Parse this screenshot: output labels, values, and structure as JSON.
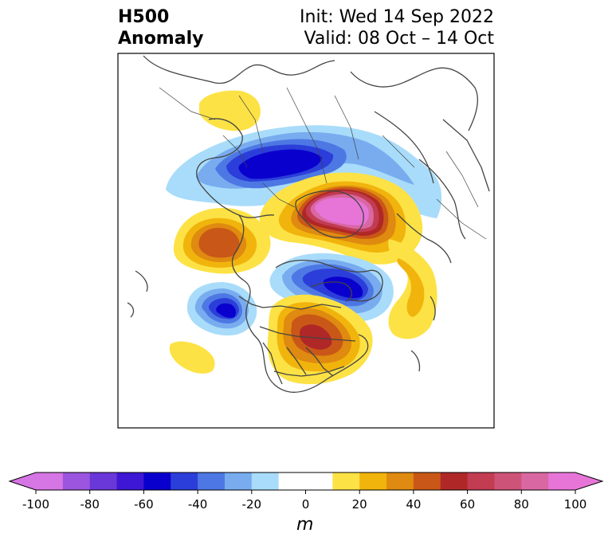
{
  "title_left_line1": "H500",
  "title_left_line2": "Anomaly",
  "title_right_line1": "Init: Wed 14 Sep 2022",
  "title_right_line2": "Valid: 08 Oct – 14 Oct",
  "colorbar": {
    "unit": "m",
    "tick_labels": [
      "-100",
      "-80",
      "-60",
      "-40",
      "-20",
      "0",
      "20",
      "40",
      "60",
      "80",
      "100"
    ],
    "range": [
      -100,
      100
    ],
    "step": 10,
    "colors": [
      "#d675e4",
      "#9b55df",
      "#6a37d9",
      "#3d17d4",
      "#0a00cd",
      "#2b3ed9",
      "#4d78e4",
      "#78acef",
      "#a8dcfa",
      "#ffffff",
      "#ffffff",
      "#fde245",
      "#f1b40c",
      "#df8a10",
      "#c95717",
      "#b02727",
      "#c23c52",
      "#ce5378",
      "#d967a2",
      "#e775d8"
    ],
    "extend": "both"
  },
  "map": {
    "projection": "polar-stereographic",
    "region": "North America / Arctic",
    "fill": "filled contours",
    "anomaly_centers": [
      {
        "label": "positive",
        "region": "Arctic / Greenland",
        "value_m": 100
      },
      {
        "label": "positive",
        "region": "Great Lakes",
        "value_m": 65
      },
      {
        "label": "positive",
        "region": "Siberia / Far East",
        "value_m": 55
      },
      {
        "label": "positive",
        "region": "Europe",
        "value_m": 20
      },
      {
        "label": "negative",
        "region": "Northern Europe / Scandinavia",
        "value_m": -60
      },
      {
        "label": "negative",
        "region": "Northeast Pacific / Gulf of Alaska",
        "value_m": -60
      },
      {
        "label": "negative",
        "region": "Canadian Arctic / Hudson Bay",
        "value_m": -60
      },
      {
        "label": "positive",
        "region": "North Pacific",
        "value_m": 20
      }
    ]
  }
}
